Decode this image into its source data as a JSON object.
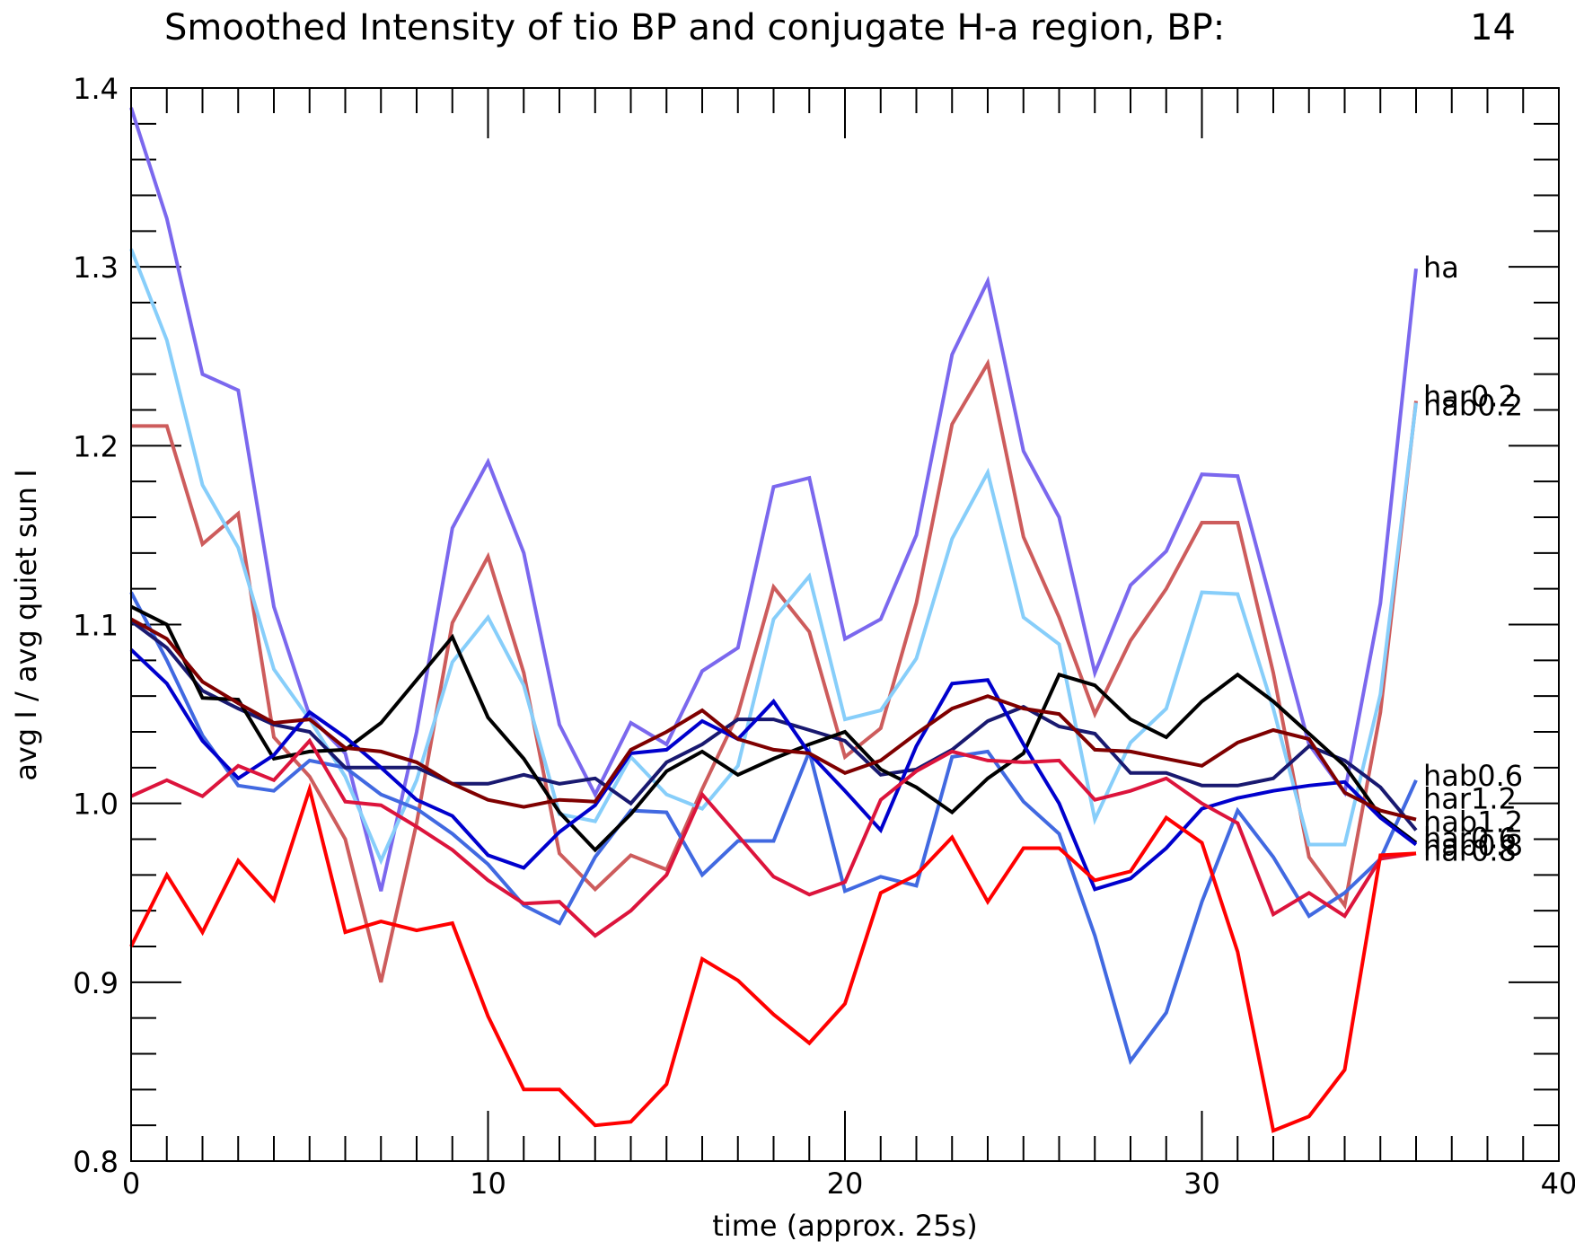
{
  "chart_data": {
    "type": "line",
    "title": "Smoothed Intensity of tio BP and conjugate H-a region, BP:",
    "title_value": "14",
    "xlabel": "time (approx. 25s)",
    "ylabel": "avg I / avg quiet sun I",
    "xlim": [
      0,
      40
    ],
    "ylim": [
      0.8,
      1.4
    ],
    "xticks": [
      0,
      10,
      20,
      30,
      40
    ],
    "yticks": [
      0.8,
      0.9,
      1.0,
      1.1,
      1.2,
      1.3,
      1.4
    ],
    "xtick_labels": [
      "0",
      "10",
      "20",
      "30",
      "40"
    ],
    "ytick_labels": [
      "0.8",
      "0.9",
      "1.0",
      "1.1",
      "1.2",
      "1.3",
      "1.4"
    ],
    "legend": "series names written at line ends (right side)",
    "grid": false,
    "series": [
      {
        "name": "ha",
        "color": "#7b68ee",
        "values": [
          1.389,
          1.327,
          1.24,
          1.231,
          1.11,
          1.049,
          1.028,
          0.951,
          1.04,
          1.154,
          1.191,
          1.14,
          1.044,
          1.005,
          1.045,
          1.033,
          1.074,
          1.087,
          1.177,
          1.182,
          1.092,
          1.103,
          1.15,
          1.251,
          1.292,
          1.197,
          1.16,
          1.073,
          1.122,
          1.141,
          1.184,
          1.183,
          1.108,
          1.033,
          1.006,
          1.112,
          1.299
        ]
      },
      {
        "name": "hab0.2",
        "color": "#cd5c5c",
        "values": [
          1.211,
          1.211,
          1.145,
          1.162,
          1.037,
          1.015,
          0.98,
          0.9,
          0.989,
          1.101,
          1.138,
          1.073,
          0.972,
          0.952,
          0.971,
          0.963,
          1.008,
          1.05,
          1.121,
          1.096,
          1.026,
          1.042,
          1.112,
          1.212,
          1.246,
          1.149,
          1.104,
          1.05,
          1.091,
          1.12,
          1.157,
          1.157,
          1.073,
          0.97,
          0.943,
          1.051,
          1.225
        ]
      },
      {
        "name": "har0.2",
        "color": "#87cefa",
        "values": [
          1.31,
          1.259,
          1.178,
          1.143,
          1.075,
          1.047,
          1.015,
          0.968,
          1.013,
          1.079,
          1.104,
          1.066,
          0.994,
          0.99,
          1.026,
          1.005,
          0.997,
          1.021,
          1.103,
          1.127,
          1.047,
          1.052,
          1.081,
          1.148,
          1.185,
          1.104,
          1.089,
          0.991,
          1.034,
          1.053,
          1.118,
          1.117,
          1.053,
          0.977,
          0.977,
          1.061,
          1.224
        ]
      },
      {
        "name": "hab0.6",
        "color": "#4169e1",
        "values": [
          1.118,
          1.08,
          1.038,
          1.01,
          1.007,
          1.024,
          1.02,
          1.005,
          0.997,
          0.983,
          0.966,
          0.943,
          0.933,
          0.97,
          0.996,
          0.995,
          0.96,
          0.979,
          0.979,
          1.029,
          0.951,
          0.959,
          0.954,
          1.026,
          1.029,
          1.001,
          0.983,
          0.926,
          0.856,
          0.883,
          0.945,
          0.996,
          0.97,
          0.937,
          0.95,
          0.969,
          1.013
        ]
      },
      {
        "name": "har1.2",
        "color": "#191970",
        "values": [
          1.102,
          1.087,
          1.063,
          1.053,
          1.044,
          1.04,
          1.02,
          1.02,
          1.02,
          1.011,
          1.011,
          1.016,
          1.011,
          1.014,
          1.0,
          1.023,
          1.033,
          1.047,
          1.047,
          1.041,
          1.035,
          1.016,
          1.019,
          1.03,
          1.046,
          1.054,
          1.043,
          1.039,
          1.017,
          1.017,
          1.01,
          1.01,
          1.014,
          1.032,
          1.024,
          1.009,
          0.985
        ]
      },
      {
        "name": "hab1.2",
        "color": "#000000",
        "values": [
          1.11,
          1.1,
          1.059,
          1.058,
          1.025,
          1.029,
          1.03,
          1.045,
          1.069,
          1.093,
          1.048,
          1.025,
          0.995,
          0.974,
          0.994,
          1.018,
          1.029,
          1.016,
          1.025,
          1.033,
          1.04,
          1.019,
          1.009,
          0.995,
          1.014,
          1.028,
          1.072,
          1.066,
          1.047,
          1.037,
          1.057,
          1.072,
          1.057,
          1.039,
          1.021,
          0.993,
          0.978
        ]
      },
      {
        "name": "har0.6",
        "color": "#0000cd",
        "values": [
          1.086,
          1.067,
          1.035,
          1.014,
          1.027,
          1.051,
          1.037,
          1.02,
          1.002,
          0.993,
          0.971,
          0.964,
          0.984,
          0.999,
          1.028,
          1.03,
          1.046,
          1.036,
          1.057,
          1.028,
          1.007,
          0.985,
          1.032,
          1.067,
          1.069,
          1.033,
          1.0,
          0.952,
          0.958,
          0.975,
          0.997,
          1.003,
          1.007,
          1.01,
          1.012,
          0.992,
          0.977
        ]
      },
      {
        "name": "hab0.8",
        "color": "#7f0000",
        "values": [
          1.103,
          1.092,
          1.068,
          1.056,
          1.045,
          1.047,
          1.031,
          1.029,
          1.023,
          1.011,
          1.002,
          0.998,
          1.002,
          1.001,
          1.03,
          1.04,
          1.052,
          1.036,
          1.03,
          1.028,
          1.017,
          1.024,
          1.039,
          1.053,
          1.06,
          1.053,
          1.05,
          1.03,
          1.029,
          1.025,
          1.021,
          1.034,
          1.041,
          1.036,
          1.006,
          0.996,
          0.991
        ]
      },
      {
        "name": "har0.8",
        "color": "#dc143c",
        "values": [
          1.004,
          1.013,
          1.004,
          1.021,
          1.013,
          1.035,
          1.001,
          0.999,
          0.987,
          0.974,
          0.957,
          0.944,
          0.945,
          0.926,
          0.94,
          0.96,
          1.005,
          0.982,
          0.959,
          0.949,
          0.956,
          1.002,
          1.018,
          1.029,
          1.024,
          1.023,
          1.024,
          1.002,
          1.007,
          1.014,
          1.0,
          0.989,
          0.938,
          0.95,
          0.937,
          0.969,
          0.972
        ]
      },
      {
        "name": "",
        "color": "#ff0000",
        "values": [
          0.92,
          0.96,
          0.928,
          0.968,
          0.946,
          1.008,
          0.928,
          0.934,
          0.929,
          0.933,
          0.881,
          0.84,
          0.84,
          0.82,
          0.822,
          0.843,
          0.913,
          0.901,
          0.882,
          0.866,
          0.888,
          0.95,
          0.96,
          0.981,
          0.945,
          0.975,
          0.975,
          0.957,
          0.962,
          0.992,
          0.978,
          0.917,
          0.817,
          0.825,
          0.851,
          0.971,
          0.972
        ]
      }
    ],
    "end_labels": [
      {
        "text": "ha",
        "y": 1.297
      },
      {
        "text": "har0.2",
        "y": 1.225
      },
      {
        "text": "hab0.2",
        "y": 1.22
      },
      {
        "text": "hab0.6",
        "y": 1.013
      },
      {
        "text": "har1.2",
        "y": 1.0
      },
      {
        "text": "hab1.2",
        "y": 0.987
      },
      {
        "text": "har0.6",
        "y": 0.978
      },
      {
        "text": "hab0.8",
        "y": 0.974
      },
      {
        "text": "har0.8",
        "y": 0.971
      }
    ]
  }
}
